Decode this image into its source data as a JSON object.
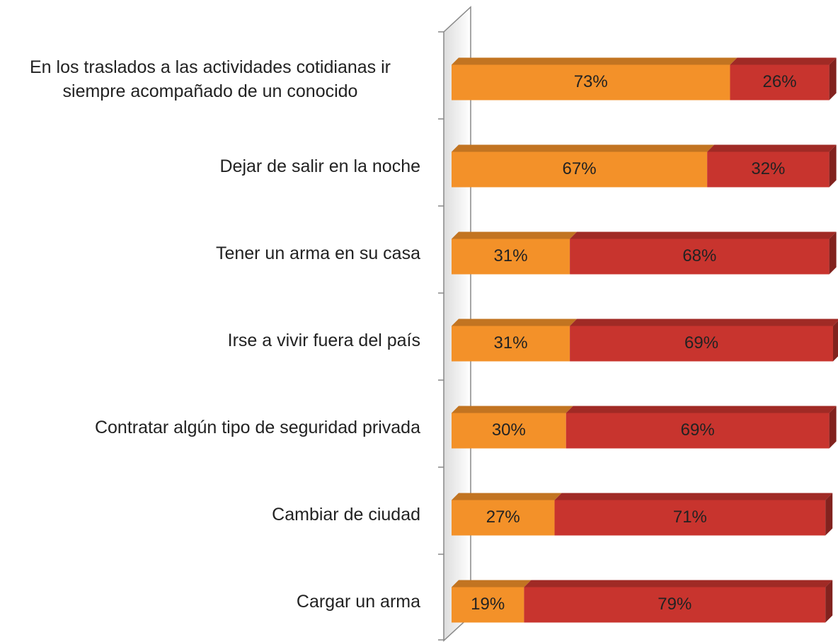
{
  "chart_data": {
    "type": "stacked-bar-horizontal",
    "categories": [
      "En los traslados a las actividades cotidianas ir siempre acompañado de un conocido",
      "Dejar de salir en la noche",
      "Tener un arma en su casa",
      "Irse a vivir fuera del país",
      "Contratar algún tipo de seguridad privada",
      "Cambiar de ciudad",
      "Cargar un arma"
    ],
    "series": [
      {
        "color": "#f39129",
        "values": [
          73,
          67,
          31,
          31,
          30,
          27,
          19
        ],
        "value_labels": [
          "73%",
          "67%",
          "31%",
          "31%",
          "30%",
          "27%",
          "19%"
        ]
      },
      {
        "color": "#c8342e",
        "values": [
          26,
          32,
          68,
          69,
          69,
          71,
          79
        ],
        "value_labels": [
          "26%",
          "32%",
          "68%",
          "69%",
          "69%",
          "71%",
          "79%"
        ]
      }
    ],
    "xlim": [
      0,
      100
    ]
  }
}
